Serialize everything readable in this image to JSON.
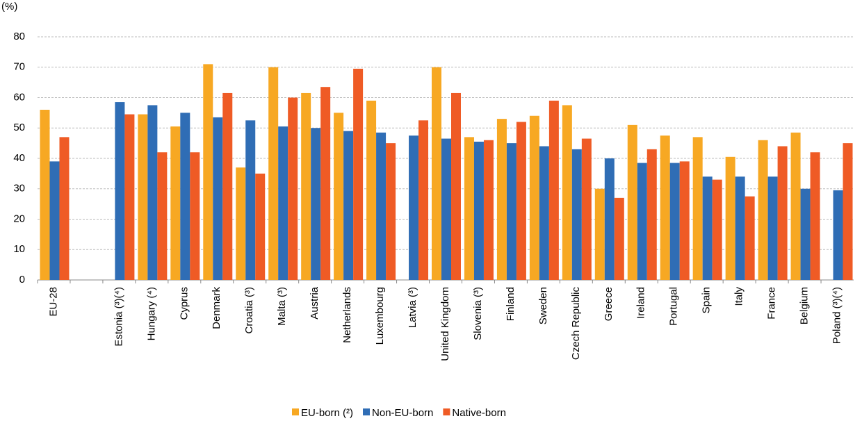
{
  "chart_data": {
    "type": "bar",
    "y_label": "(%)",
    "categories": [
      "EU-28",
      null,
      "Estonia (³)(⁴)",
      "Hungary (⁴)",
      "Cyprus",
      "Denmark",
      "Croatia (³)",
      "Malta (³)",
      "Austria",
      "Netherlands",
      "Luxembourg",
      "Latvia (³)",
      "United Kingdom",
      "Slovenia (³)",
      "Finland",
      "Sweden",
      "Czech Republic",
      "Greece",
      "Ireland",
      "Portugal",
      "Spain",
      "Italy",
      "France",
      "Belgium",
      "Poland (³)(⁴)"
    ],
    "series": [
      {
        "name": "EU-born (²)",
        "color": "#f7a823",
        "values": [
          56,
          null,
          null,
          54.5,
          50.5,
          71,
          37,
          70,
          61.5,
          55,
          59,
          null,
          70,
          47,
          53,
          54,
          57.5,
          30,
          51,
          47.5,
          47,
          40.5,
          46,
          48.5,
          null
        ]
      },
      {
        "name": "Non-EU-born",
        "color": "#2f6db5",
        "values": [
          39,
          null,
          58.5,
          57.5,
          55,
          53.5,
          52.5,
          50.5,
          50,
          49,
          48.5,
          47.5,
          46.5,
          45.5,
          45,
          44,
          43,
          40,
          38.5,
          38.5,
          34,
          34,
          34,
          30,
          29.5
        ]
      },
      {
        "name": "Native-born",
        "color": "#ef5b25",
        "values": [
          47,
          null,
          54.5,
          42,
          42,
          61.5,
          35,
          60,
          63.5,
          69.5,
          45,
          52.5,
          61.5,
          46,
          52,
          59,
          46.5,
          27,
          43,
          39,
          33,
          27.5,
          44,
          42,
          45
        ]
      }
    ],
    "ylim": [
      0,
      80
    ],
    "yticks": [
      0,
      10,
      20,
      30,
      40,
      50,
      60,
      70,
      80
    ],
    "grid": true
  }
}
